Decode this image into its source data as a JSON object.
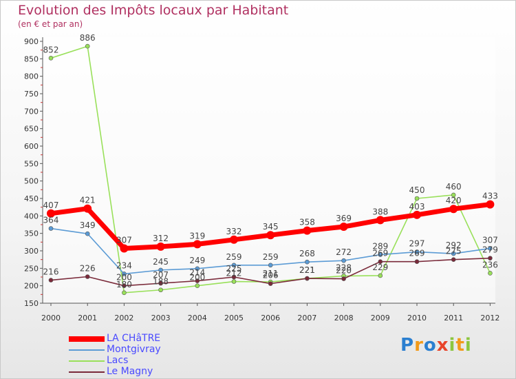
{
  "brand": "Proxiti",
  "chart_data": {
    "type": "line",
    "title": "Evolution des Impôts locaux par Habitant",
    "subtitle": "(en € et par an)",
    "xlabel": "",
    "ylabel": "",
    "categories": [
      "2000",
      "2001",
      "2002",
      "2003",
      "2004",
      "2005",
      "2006",
      "2007",
      "2008",
      "2009",
      "2010",
      "2011",
      "2012"
    ],
    "ylim": [
      150,
      900
    ],
    "yticks": [
      150,
      200,
      250,
      300,
      350,
      400,
      450,
      500,
      550,
      600,
      650,
      700,
      750,
      800,
      850,
      900
    ],
    "grid": false,
    "legend_position": "bottom-left",
    "series": [
      {
        "name": "LA CHâTRE",
        "color": "#ff0000",
        "values": [
          407,
          421,
          307,
          312,
          319,
          332,
          345,
          358,
          369,
          388,
          403,
          420,
          433
        ],
        "labels": [
          407,
          421,
          307,
          312,
          319,
          332,
          345,
          358,
          369,
          388,
          403,
          420,
          433
        ]
      },
      {
        "name": "Montgivray",
        "color": "#5b9bd5",
        "values": [
          364,
          349,
          234,
          245,
          249,
          259,
          259,
          268,
          272,
          289,
          297,
          292,
          307
        ],
        "labels": [
          364,
          349,
          234,
          245,
          249,
          259,
          259,
          268,
          272,
          289,
          297,
          292,
          307
        ]
      },
      {
        "name": "Lacs",
        "color": "#99e05a",
        "values": [
          852,
          886,
          180,
          188,
          200,
          212,
          211,
          221,
          228,
          229,
          450,
          460,
          236
        ],
        "labels": [
          852,
          886,
          180,
          188,
          200,
          212,
          211,
          221,
          228,
          229,
          450,
          460,
          236
        ]
      },
      {
        "name": "Le Magny",
        "color": "#7a2a3a",
        "values": [
          216,
          226,
          200,
          207,
          214,
          225,
          206,
          221,
          220,
          269,
          269,
          275,
          279
        ],
        "labels": [
          216,
          226,
          200,
          207,
          214,
          225,
          206,
          221,
          220,
          269,
          269,
          275,
          279
        ]
      }
    ]
  }
}
